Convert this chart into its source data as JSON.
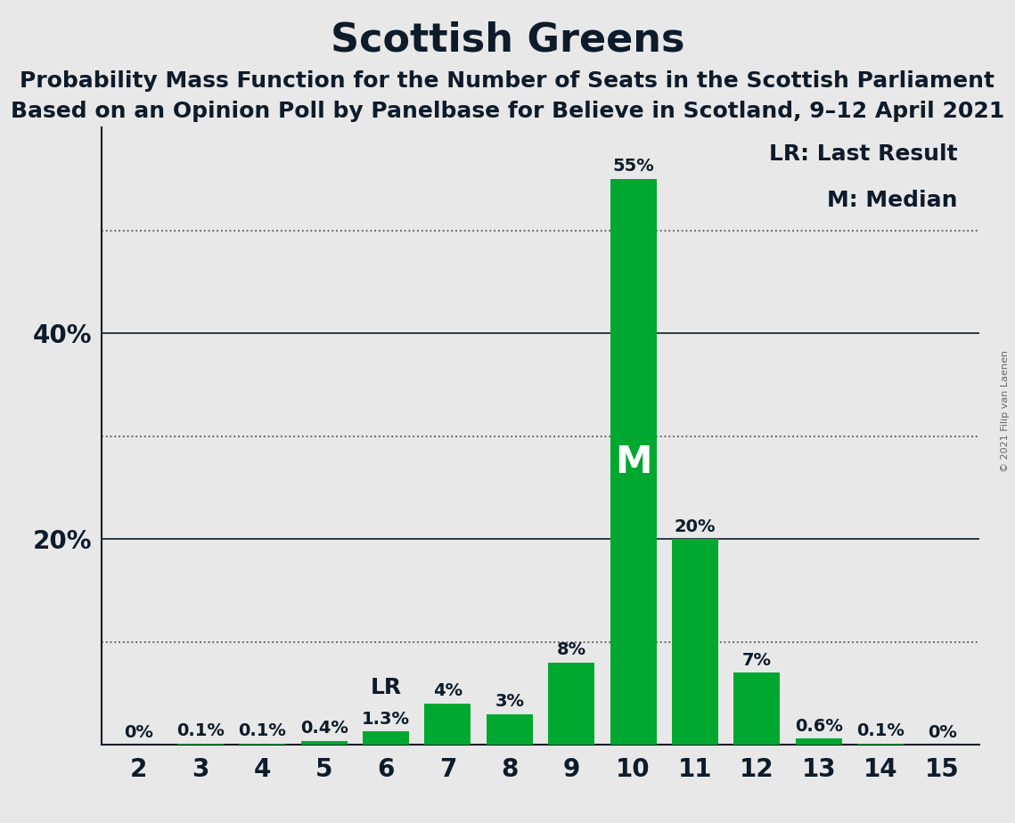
{
  "title": "Scottish Greens",
  "subtitle1": "Probability Mass Function for the Number of Seats in the Scottish Parliament",
  "subtitle2": "Based on an Opinion Poll by Panelbase for Believe in Scotland, 9–12 April 2021",
  "copyright": "© 2021 Filip van Laenen",
  "categories": [
    2,
    3,
    4,
    5,
    6,
    7,
    8,
    9,
    10,
    11,
    12,
    13,
    14,
    15
  ],
  "values": [
    0.0,
    0.1,
    0.1,
    0.4,
    1.3,
    4.0,
    3.0,
    8.0,
    55.0,
    20.0,
    7.0,
    0.6,
    0.1,
    0.0
  ],
  "labels": [
    "0%",
    "0.1%",
    "0.1%",
    "0.4%",
    "1.3%",
    "4%",
    "3%",
    "8%",
    "55%",
    "20%",
    "7%",
    "0.6%",
    "0.1%",
    "0%"
  ],
  "bar_color": "#00a830",
  "background_color": "#e8e8e8",
  "median_seat": 10,
  "last_result_seat": 6,
  "median_label": "M",
  "last_result_label": "LR",
  "grid_dotted": [
    10,
    30,
    50
  ],
  "grid_solid": [
    20,
    40
  ],
  "ytick_positions": [
    20,
    40
  ],
  "ytick_labels": [
    "20%",
    "40%"
  ],
  "title_fontsize": 32,
  "subtitle_fontsize": 18,
  "bar_label_fontsize": 14,
  "axis_tick_fontsize": 20,
  "median_fontsize": 30,
  "lr_fontsize": 18,
  "legend_fontsize": 18,
  "ylim_max": 60
}
